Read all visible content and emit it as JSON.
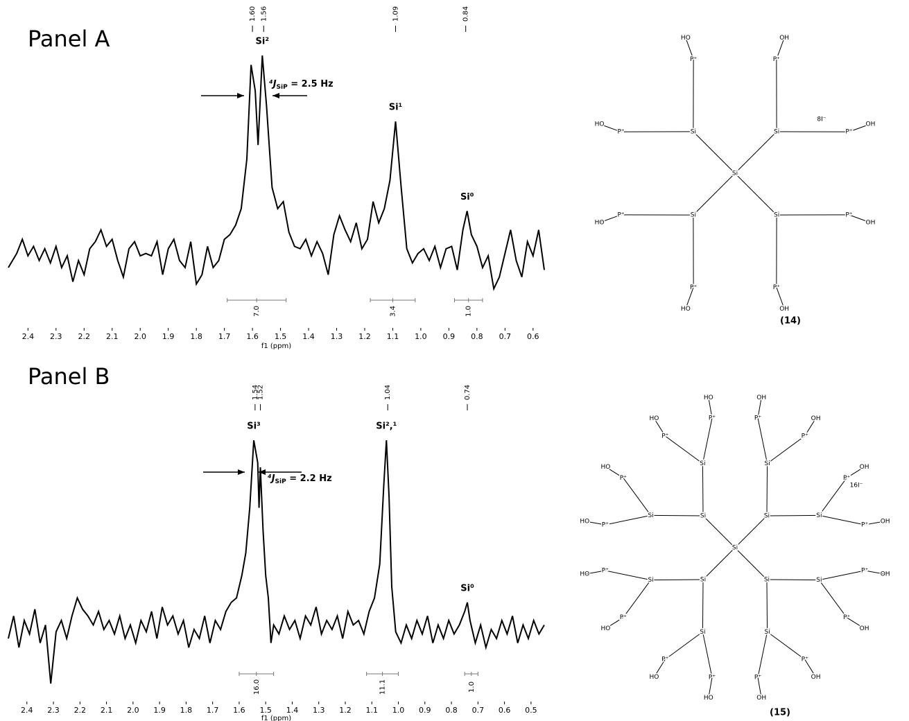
{
  "chart_data": [
    {
      "type": "line",
      "title": "Panel A",
      "xlabel": "f1 (ppm)",
      "color": "#000000",
      "xlim": [
        2.47,
        0.56
      ],
      "ylim": [
        0,
        100
      ],
      "xticks": [
        2.4,
        2.3,
        2.2,
        2.1,
        {
          "value": 2,
          "label": "2.0"
        },
        1.9,
        1.8,
        1.7,
        1.6,
        1.5,
        1.4,
        1.3,
        1.2,
        1.1,
        {
          "value": 1,
          "label": "1.0"
        },
        0.9,
        0.8,
        0.7,
        0.6
      ],
      "x": [
        2.47,
        2.44,
        2.42,
        2.4,
        2.38,
        2.36,
        2.34,
        2.32,
        2.3,
        2.28,
        2.26,
        2.24,
        2.22,
        2.2,
        2.18,
        2.16,
        2.14,
        2.12,
        2.1,
        2.08,
        2.06,
        2.04,
        2.02,
        2,
        1.98,
        1.96,
        1.94,
        1.92,
        1.9,
        1.88,
        1.86,
        1.84,
        1.82,
        1.8,
        1.78,
        1.76,
        1.74,
        1.72,
        1.7,
        1.68,
        1.66,
        1.64,
        1.62,
        1.605,
        1.59,
        1.58,
        1.565,
        1.55,
        1.53,
        1.51,
        1.49,
        1.47,
        1.45,
        1.43,
        1.41,
        1.39,
        1.37,
        1.35,
        1.33,
        1.31,
        1.29,
        1.27,
        1.25,
        1.23,
        1.21,
        1.19,
        1.17,
        1.15,
        1.13,
        1.11,
        1.09,
        1.07,
        1.05,
        1.03,
        1.01,
        0.99,
        0.97,
        0.95,
        0.93,
        0.91,
        0.89,
        0.87,
        0.85,
        0.835,
        0.82,
        0.8,
        0.78,
        0.76,
        0.74,
        0.72,
        0.7,
        0.68,
        0.66,
        0.64,
        0.62,
        0.6,
        0.58,
        0.56
      ],
      "values": [
        10,
        16,
        22,
        15,
        19,
        13,
        18,
        12,
        19,
        10,
        15,
        4,
        13,
        7,
        18,
        21,
        26,
        19,
        22,
        13,
        6,
        18,
        21,
        15,
        16,
        15,
        21,
        7,
        18,
        22,
        13,
        10,
        21,
        3,
        7,
        19,
        10,
        13,
        22,
        24,
        28,
        35,
        56,
        96,
        85,
        62,
        100,
        79,
        44,
        35,
        38,
        25,
        19,
        18,
        22,
        15,
        21,
        16,
        7,
        24,
        32,
        26,
        21,
        29,
        18,
        22,
        38,
        29,
        35,
        47,
        72,
        44,
        18,
        12,
        16,
        18,
        13,
        19,
        10,
        18,
        19,
        9,
        26,
        34,
        24,
        19,
        10,
        15,
        1,
        6,
        16,
        26,
        13,
        6,
        21,
        15,
        26,
        9
      ],
      "peak_labels": [
        {
          "value": 1.6,
          "label": "1.60"
        },
        1.56,
        1.09,
        0.84
      ],
      "assignments": [
        {
          "text": "Si²",
          "x": 1.565
        },
        {
          "text": "Si¹",
          "x": 1.09
        },
        {
          "text": "Si⁰",
          "x": 0.835
        }
      ],
      "integrals": [
        {
          "range": [
            1.69,
            1.48
          ],
          "value": 7,
          "label": "7.0"
        },
        {
          "range": [
            1.18,
            1.02
          ],
          "value": 3.4,
          "label": "3.4"
        },
        {
          "range": [
            0.88,
            0.78
          ],
          "value": 1,
          "label": "1.0"
        }
      ],
      "coupling": {
        "j": "⁴J",
        "sub": "SiP",
        "text": " = 2.5 Hz"
      }
    },
    {
      "type": "line",
      "title": "Panel B",
      "xlabel": "f1 (ppm)",
      "color": "#000000",
      "xlim": [
        2.47,
        0.45
      ],
      "ylim": [
        0,
        100
      ],
      "xticks": [
        2.4,
        2.3,
        2.2,
        2.1,
        {
          "value": 2,
          "label": "2.0"
        },
        1.9,
        1.8,
        1.7,
        1.6,
        1.5,
        1.4,
        1.3,
        1.2,
        1.1,
        {
          "value": 1,
          "label": "1.0"
        },
        0.9,
        0.8,
        0.7,
        0.6,
        0.5
      ],
      "x": [
        2.47,
        2.45,
        2.43,
        2.41,
        2.39,
        2.37,
        2.35,
        2.33,
        2.31,
        2.29,
        2.27,
        2.25,
        2.23,
        2.21,
        2.19,
        2.17,
        2.15,
        2.13,
        2.11,
        2.09,
        2.07,
        2.05,
        2.03,
        2.01,
        1.99,
        1.97,
        1.95,
        1.93,
        1.91,
        1.89,
        1.87,
        1.85,
        1.83,
        1.81,
        1.79,
        1.77,
        1.75,
        1.73,
        1.71,
        1.69,
        1.67,
        1.65,
        1.63,
        1.61,
        1.59,
        1.575,
        1.56,
        1.545,
        1.53,
        1.525,
        1.52,
        1.51,
        1.5,
        1.49,
        1.48,
        1.47,
        1.45,
        1.43,
        1.41,
        1.39,
        1.37,
        1.35,
        1.33,
        1.31,
        1.29,
        1.27,
        1.25,
        1.23,
        1.21,
        1.19,
        1.17,
        1.15,
        1.13,
        1.11,
        1.09,
        1.07,
        1.055,
        1.045,
        1.035,
        1.025,
        1.01,
        0.99,
        0.97,
        0.95,
        0.93,
        0.91,
        0.89,
        0.87,
        0.85,
        0.83,
        0.81,
        0.79,
        0.77,
        0.75,
        0.74,
        0.73,
        0.71,
        0.69,
        0.67,
        0.65,
        0.63,
        0.61,
        0.59,
        0.57,
        0.55,
        0.53,
        0.51,
        0.49,
        0.47,
        0.45
      ],
      "values": [
        12,
        22,
        8,
        20,
        14,
        25,
        10,
        18,
        -8,
        15,
        20,
        12,
        22,
        30,
        25,
        22,
        18,
        24,
        16,
        20,
        14,
        22,
        12,
        18,
        10,
        20,
        15,
        24,
        12,
        26,
        18,
        22,
        14,
        20,
        8,
        16,
        12,
        22,
        10,
        20,
        16,
        24,
        28,
        30,
        40,
        50,
        70,
        100,
        90,
        70,
        88,
        60,
        40,
        30,
        10,
        18,
        14,
        22,
        16,
        20,
        12,
        22,
        18,
        26,
        14,
        20,
        16,
        22,
        12,
        24,
        18,
        20,
        14,
        24,
        30,
        45,
        80,
        100,
        75,
        35,
        15,
        10,
        18,
        12,
        20,
        14,
        22,
        10,
        18,
        12,
        20,
        14,
        18,
        24,
        28,
        20,
        10,
        18,
        8,
        16,
        12,
        20,
        14,
        22,
        10,
        18,
        12,
        20,
        14,
        18
      ],
      "peak_labels": [
        1.54,
        1.52,
        1.04,
        0.74
      ],
      "assignments": [
        {
          "text": "Si³",
          "x": 1.545
        },
        {
          "text": "Si²,¹",
          "x": 1.045
        },
        {
          "text": "Si⁰",
          "x": 0.74
        }
      ],
      "integrals": [
        {
          "range": [
            1.6,
            1.47
          ],
          "value": 16,
          "label": "16.0"
        },
        {
          "range": [
            1.12,
            1
          ],
          "value": 11.1,
          "label": "11.1"
        },
        {
          "range": [
            0.75,
            0.7
          ],
          "value": 1,
          "label": "1.0"
        }
      ],
      "coupling": {
        "j": "⁴J",
        "sub": "SiP",
        "text": " = 2.2 Hz"
      }
    }
  ],
  "structures": [
    {
      "label": "(14)",
      "counterion": "8I⁻",
      "core": "Si",
      "arms": [
        {
          "atom": "Si",
          "arms": [
            {
              "atom": "P⁺",
              "end": "OH"
            },
            {
              "atom": "P⁺",
              "end": "OH"
            }
          ]
        },
        {
          "atom": "Si",
          "arms": [
            {
              "atom": "P⁺",
              "end": "OH"
            },
            {
              "atom": "P⁺",
              "end": "OH"
            }
          ]
        },
        {
          "atom": "Si",
          "arms": [
            {
              "atom": "P⁺",
              "end": "HO"
            },
            {
              "atom": "P⁺",
              "end": "HO"
            }
          ]
        },
        {
          "atom": "Si",
          "arms": [
            {
              "atom": "P⁺",
              "end": "HO"
            },
            {
              "atom": "P⁺",
              "end": "HO"
            }
          ]
        }
      ]
    },
    {
      "label": "(15)",
      "counterion": "16I⁻",
      "core": "Si",
      "arms": [
        {
          "atom": "Si",
          "arms": [
            {
              "atom": "Si",
              "arms": [
                {
                  "atom": "P⁺",
                  "end": "OH"
                },
                {
                  "atom": "P⁺",
                  "end": "OH"
                }
              ]
            },
            {
              "atom": "Si",
              "arms": [
                {
                  "atom": "P⁺",
                  "end": "OH"
                },
                {
                  "atom": "P⁺",
                  "end": "OH"
                }
              ]
            }
          ]
        },
        {
          "atom": "Si",
          "arms": [
            {
              "atom": "Si",
              "arms": [
                {
                  "atom": "P⁺",
                  "end": "OH"
                },
                {
                  "atom": "P⁺",
                  "end": "OH"
                }
              ]
            },
            {
              "atom": "Si",
              "arms": [
                {
                  "atom": "P⁺",
                  "end": "OH"
                },
                {
                  "atom": "P⁺",
                  "end": "OH"
                }
              ]
            }
          ]
        },
        {
          "atom": "Si",
          "arms": [
            {
              "atom": "Si",
              "arms": [
                {
                  "atom": "P⁺",
                  "end": "HO"
                },
                {
                  "atom": "P⁺",
                  "end": "HO"
                }
              ]
            },
            {
              "atom": "Si",
              "arms": [
                {
                  "atom": "P⁺",
                  "end": "HO"
                },
                {
                  "atom": "P⁺",
                  "end": "HO"
                }
              ]
            }
          ]
        },
        {
          "atom": "Si",
          "arms": [
            {
              "atom": "Si",
              "arms": [
                {
                  "atom": "P⁺",
                  "end": "HO"
                },
                {
                  "atom": "P⁺",
                  "end": "HO"
                }
              ]
            },
            {
              "atom": "Si",
              "arms": [
                {
                  "atom": "P⁺",
                  "end": "HO"
                },
                {
                  "atom": "P⁺",
                  "end": "HO"
                }
              ]
            }
          ]
        }
      ]
    }
  ]
}
